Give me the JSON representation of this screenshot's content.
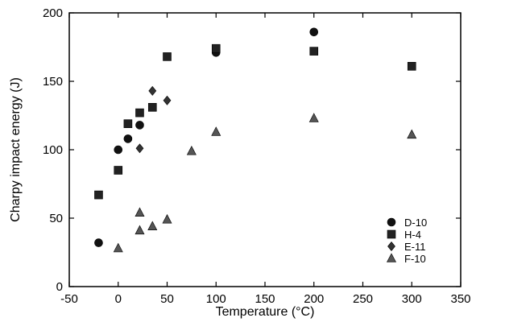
{
  "chart_data": {
    "type": "scatter",
    "xlabel": "Temperature (°C)",
    "ylabel": "Charpy impact energy (J)",
    "xlim": [
      -50,
      350
    ],
    "ylim": [
      0,
      200
    ],
    "xticks": [
      -50,
      0,
      50,
      100,
      150,
      200,
      250,
      300,
      350
    ],
    "yticks": [
      0,
      50,
      100,
      150,
      200
    ],
    "grid": false,
    "legend_position": "bottom-right",
    "series": [
      {
        "name": "D-10",
        "marker": "circle",
        "color": "#111111",
        "points": [
          [
            -20,
            32
          ],
          [
            0,
            100
          ],
          [
            10,
            108
          ],
          [
            22,
            118
          ],
          [
            100,
            171
          ],
          [
            200,
            186
          ]
        ]
      },
      {
        "name": "H-4",
        "marker": "square",
        "color": "#222222",
        "points": [
          [
            -20,
            67
          ],
          [
            0,
            85
          ],
          [
            10,
            119
          ],
          [
            22,
            127
          ],
          [
            35,
            131
          ],
          [
            50,
            168
          ],
          [
            100,
            174
          ],
          [
            200,
            172
          ],
          [
            300,
            161
          ]
        ]
      },
      {
        "name": "E-11",
        "marker": "diamond",
        "color": "#333333",
        "points": [
          [
            22,
            101
          ],
          [
            35,
            143
          ],
          [
            50,
            136
          ]
        ]
      },
      {
        "name": "F-10",
        "marker": "triangle",
        "color": "#555555",
        "points": [
          [
            0,
            28
          ],
          [
            22,
            41
          ],
          [
            22,
            54
          ],
          [
            35,
            44
          ],
          [
            50,
            49
          ],
          [
            75,
            99
          ],
          [
            100,
            113
          ],
          [
            200,
            123
          ],
          [
            300,
            111
          ]
        ]
      }
    ]
  }
}
